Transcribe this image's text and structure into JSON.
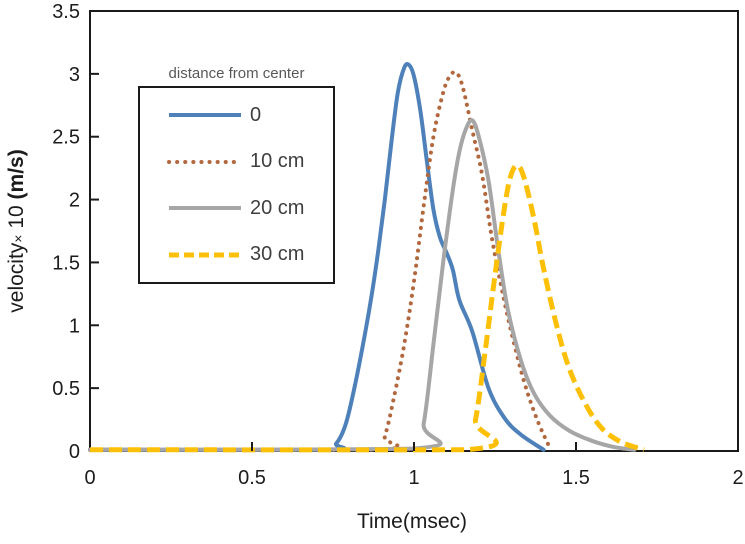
{
  "chart_data": {
    "type": "line",
    "xlabel": "Time(msec)",
    "ylabel": {
      "name": "velocity",
      "times": "×",
      "scale": " 10 ",
      "unit": "(m/s)"
    },
    "xlim": [
      0,
      2
    ],
    "ylim": [
      0,
      3.5
    ],
    "grid": false,
    "x_ticks": [
      {
        "v": 0,
        "label": "0"
      },
      {
        "v": 0.5,
        "label": "0.5"
      },
      {
        "v": 1,
        "label": "1"
      },
      {
        "v": 1.5,
        "label": "1.5"
      },
      {
        "v": 2,
        "label": "2"
      }
    ],
    "y_ticks": [
      {
        "v": 0,
        "label": "0"
      },
      {
        "v": 0.5,
        "label": "0.5"
      },
      {
        "v": 1,
        "label": "1"
      },
      {
        "v": 1.5,
        "label": "1.5"
      },
      {
        "v": 2,
        "label": "2"
      },
      {
        "v": 2.5,
        "label": "2.5"
      },
      {
        "v": 3,
        "label": "3"
      },
      {
        "v": 3.5,
        "label": "3.5"
      }
    ],
    "legend": {
      "title": "distance from center",
      "position": "upper-left-inside"
    },
    "axis_color": "#1a1a1a",
    "series": [
      {
        "name": "0",
        "color": "#4e81ba",
        "style": "solid",
        "width": 4,
        "peak": {
          "x": 0.98,
          "y": 3.07
        },
        "points": [
          [
            0,
            0.01
          ],
          [
            0.72,
            0.01
          ],
          [
            0.76,
            0.06
          ],
          [
            0.79,
            0.22
          ],
          [
            0.82,
            0.55
          ],
          [
            0.85,
            0.95
          ],
          [
            0.87,
            1.25
          ],
          [
            0.89,
            1.6
          ],
          [
            0.91,
            2.0
          ],
          [
            0.93,
            2.45
          ],
          [
            0.95,
            2.85
          ],
          [
            0.97,
            3.05
          ],
          [
            0.985,
            3.07
          ],
          [
            1.0,
            2.98
          ],
          [
            1.02,
            2.7
          ],
          [
            1.04,
            2.3
          ],
          [
            1.06,
            1.92
          ],
          [
            1.08,
            1.7
          ],
          [
            1.1,
            1.58
          ],
          [
            1.12,
            1.44
          ],
          [
            1.14,
            1.2
          ],
          [
            1.18,
            0.95
          ],
          [
            1.23,
            0.5
          ],
          [
            1.28,
            0.26
          ],
          [
            1.33,
            0.13
          ],
          [
            1.4,
            0.01
          ]
        ]
      },
      {
        "name": "10 cm",
        "color": "#b2683f",
        "style": "dotted",
        "width": 4,
        "peak": {
          "x": 1.13,
          "y": 3.01
        },
        "points": [
          [
            0,
            0.01
          ],
          [
            0.88,
            0.01
          ],
          [
            0.91,
            0.12
          ],
          [
            0.94,
            0.45
          ],
          [
            0.97,
            0.85
          ],
          [
            1.0,
            1.35
          ],
          [
            1.03,
            1.95
          ],
          [
            1.06,
            2.5
          ],
          [
            1.09,
            2.85
          ],
          [
            1.11,
            2.98
          ],
          [
            1.13,
            3.01
          ],
          [
            1.15,
            2.9
          ],
          [
            1.18,
            2.55
          ],
          [
            1.21,
            2.2
          ],
          [
            1.24,
            1.7
          ],
          [
            1.27,
            1.3
          ],
          [
            1.3,
            0.95
          ],
          [
            1.34,
            0.55
          ],
          [
            1.38,
            0.25
          ],
          [
            1.42,
            0.02
          ]
        ]
      },
      {
        "name": "20 cm",
        "color": "#a6a6a6",
        "style": "solid",
        "width": 4,
        "peak": {
          "x": 1.18,
          "y": 2.63
        },
        "points": [
          [
            0,
            0.01
          ],
          [
            1.0,
            0.02
          ],
          [
            1.03,
            0.22
          ],
          [
            1.06,
            0.85
          ],
          [
            1.09,
            1.5
          ],
          [
            1.12,
            2.08
          ],
          [
            1.14,
            2.38
          ],
          [
            1.16,
            2.56
          ],
          [
            1.18,
            2.63
          ],
          [
            1.2,
            2.5
          ],
          [
            1.23,
            2.15
          ],
          [
            1.26,
            1.6
          ],
          [
            1.29,
            1.12
          ],
          [
            1.33,
            0.72
          ],
          [
            1.37,
            0.46
          ],
          [
            1.42,
            0.28
          ],
          [
            1.48,
            0.16
          ],
          [
            1.55,
            0.08
          ],
          [
            1.62,
            0.03
          ],
          [
            1.68,
            0.01
          ]
        ]
      },
      {
        "name": "30 cm",
        "color": "#fdc008",
        "style": "dashed",
        "width": 5,
        "peak": {
          "x": 1.31,
          "y": 2.27
        },
        "points": [
          [
            0,
            0.01
          ],
          [
            1.16,
            0.01
          ],
          [
            1.19,
            0.25
          ],
          [
            1.22,
            0.8
          ],
          [
            1.25,
            1.4
          ],
          [
            1.28,
            1.95
          ],
          [
            1.3,
            2.2
          ],
          [
            1.32,
            2.27
          ],
          [
            1.34,
            2.17
          ],
          [
            1.37,
            1.85
          ],
          [
            1.4,
            1.45
          ],
          [
            1.44,
            1.0
          ],
          [
            1.48,
            0.65
          ],
          [
            1.53,
            0.37
          ],
          [
            1.58,
            0.18
          ],
          [
            1.64,
            0.07
          ],
          [
            1.71,
            0.01
          ]
        ]
      }
    ]
  }
}
